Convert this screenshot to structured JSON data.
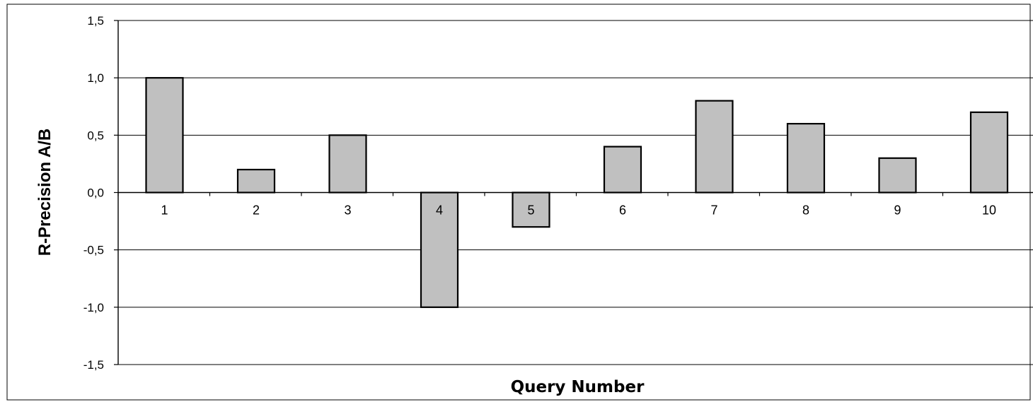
{
  "chart_data": {
    "type": "bar",
    "categories": [
      "1",
      "2",
      "3",
      "4",
      "5",
      "6",
      "7",
      "8",
      "9",
      "10"
    ],
    "values": [
      1.0,
      0.2,
      0.5,
      -1.0,
      -0.3,
      0.4,
      0.8,
      0.6,
      0.3,
      0.7
    ],
    "title": "",
    "xlabel": "Query Number",
    "ylabel": "R-Precision A/B",
    "ylim": [
      -1.5,
      1.5
    ],
    "yticks": [
      1.5,
      1.0,
      0.5,
      0.0,
      -0.5,
      -1.0,
      -1.5
    ],
    "ytick_labels": [
      "1,5",
      "1,0",
      "0,5",
      "0,0",
      "-0,5",
      "-1,0",
      "-1,5"
    ],
    "grid": true,
    "legend": "none",
    "colors": {
      "bar_fill": "#c0c0c0",
      "bar_stroke": "#000000",
      "grid": "#000000"
    }
  }
}
